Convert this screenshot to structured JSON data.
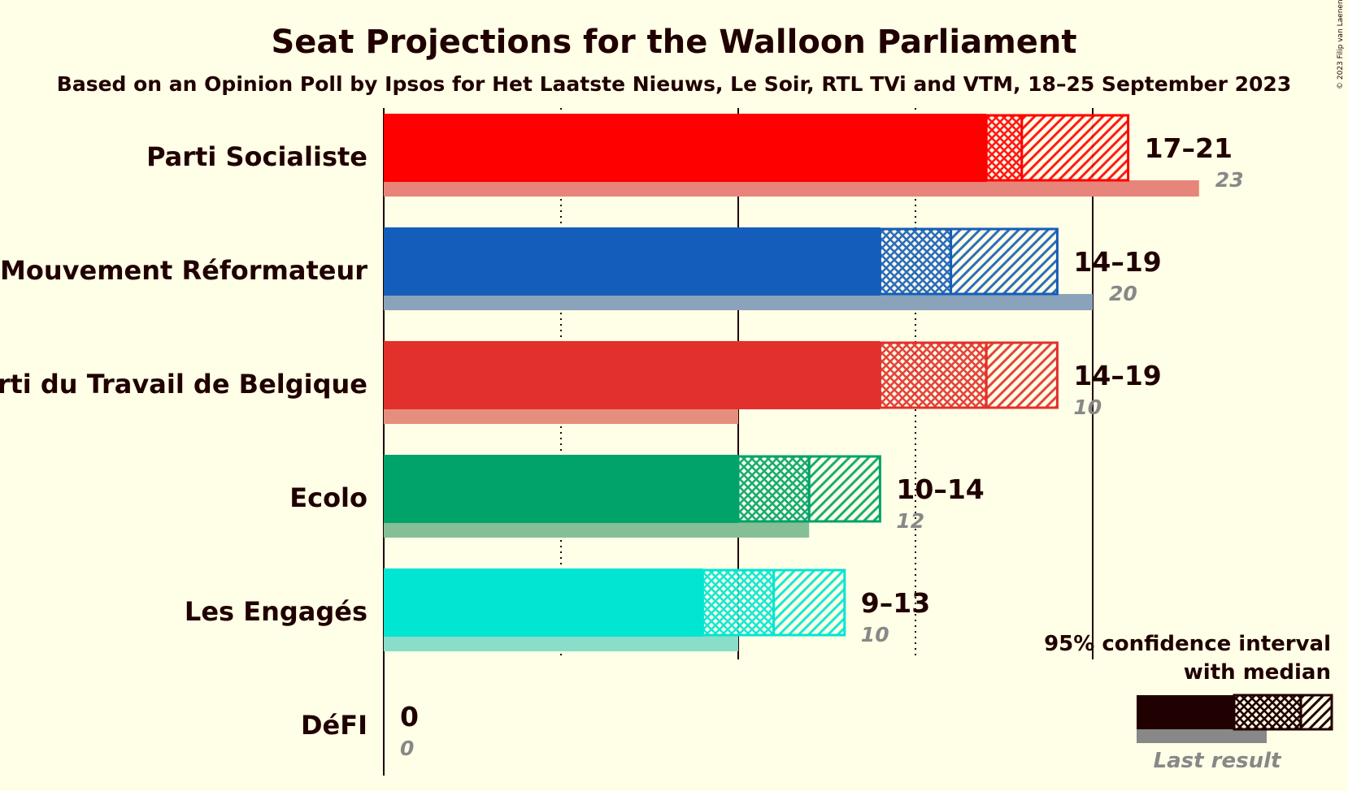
{
  "title": "Seat Projections for the Walloon Parliament",
  "subtitle": "Based on an Opinion Poll by Ipsos for Het Laatste Nieuws, Le Soir, RTL TVi and VTM, 18–25 September 2023",
  "copyright": "© 2023 Filip van Laenen",
  "legend": {
    "line1": "95% confidence interval",
    "line2": "with median",
    "last_result": "Last result"
  },
  "chart_data": {
    "type": "bar",
    "orientation": "horizontal",
    "title": "Seat Projections for the Walloon Parliament",
    "subtitle": "Based on an Opinion Poll by Ipsos for Het Laatste Nieuws, Le Soir, RTL TVi and VTM, 18–25 September 2023",
    "xlim": [
      0,
      25
    ],
    "major_gridlines": [
      0,
      10,
      20
    ],
    "minor_gridlines": [
      5,
      15
    ],
    "categories": [
      "Parti Socialiste",
      "Mouvement Réformateur",
      "Parti du Travail de Belgique",
      "Ecolo",
      "Les Engagés",
      "DéFI"
    ],
    "series": [
      {
        "party": "Parti Socialiste",
        "low": 17,
        "median": 18,
        "high": 21,
        "range_label": "17–21",
        "last_result": 23,
        "last_label": "23",
        "color": "#FF0000",
        "last_color": "#E8857A"
      },
      {
        "party": "Mouvement Réformateur",
        "low": 14,
        "median": 16,
        "high": 19,
        "range_label": "14–19",
        "last_result": 20,
        "last_label": "20",
        "color": "#155DBA",
        "last_color": "#8AA3BA"
      },
      {
        "party": "Parti du Travail de Belgique",
        "low": 14,
        "median": 17,
        "high": 19,
        "range_label": "14–19",
        "last_result": 10,
        "last_label": "10",
        "color": "#E2302C",
        "last_color": "#E68E7D"
      },
      {
        "party": "Ecolo",
        "low": 10,
        "median": 12,
        "high": 14,
        "range_label": "10–14",
        "last_result": 12,
        "last_label": "12",
        "color": "#00A36A",
        "last_color": "#86BF96"
      },
      {
        "party": "Les Engagés",
        "low": 9,
        "median": 11,
        "high": 13,
        "range_label": "9–13",
        "last_result": 10,
        "last_label": "10",
        "color": "#00E6D2",
        "last_color": "#8ADDC9"
      },
      {
        "party": "DéFI",
        "low": 0,
        "median": 0,
        "high": 0,
        "range_label": "0",
        "last_result": 0,
        "last_label": "0",
        "color": "#DD0081",
        "last_color": "#E88BB9"
      }
    ]
  }
}
